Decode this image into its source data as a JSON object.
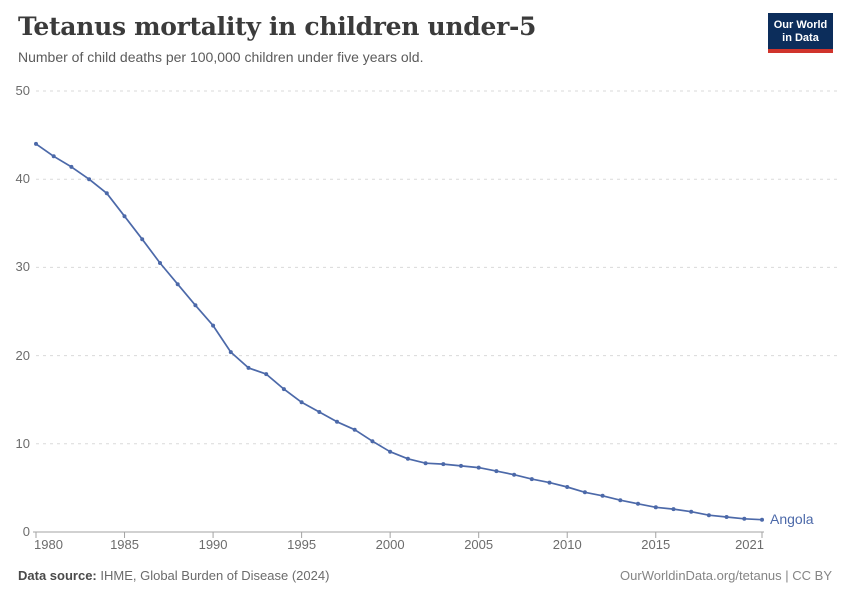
{
  "header": {
    "title": "Tetanus mortality in children under-5",
    "subtitle": "Number of child deaths per 100,000 children under five years old."
  },
  "logo": {
    "line1": "Our World",
    "line2": "in Data",
    "bg_color": "#0c2d5b",
    "accent_color": "#d0342c"
  },
  "footer": {
    "source_label": "Data source:",
    "source_text": " IHME, Global Burden of Disease (2024)",
    "credit": "OurWorldinData.org/tetanus | CC BY"
  },
  "chart_data": {
    "type": "line",
    "title": "Tetanus mortality in children under-5",
    "subtitle": "Number of child deaths per 100,000 children under five years old.",
    "x": [
      1980,
      1981,
      1982,
      1983,
      1984,
      1985,
      1986,
      1987,
      1988,
      1989,
      1990,
      1991,
      1992,
      1993,
      1994,
      1995,
      1996,
      1997,
      1998,
      1999,
      2000,
      2001,
      2002,
      2003,
      2004,
      2005,
      2006,
      2007,
      2008,
      2009,
      2010,
      2011,
      2012,
      2013,
      2014,
      2015,
      2016,
      2017,
      2018,
      2019,
      2020,
      2021
    ],
    "series": [
      {
        "name": "Angola",
        "color": "#4c69a9",
        "values": [
          44.0,
          42.6,
          41.4,
          40.0,
          38.4,
          35.8,
          33.2,
          30.5,
          28.1,
          25.7,
          23.4,
          20.4,
          18.6,
          17.9,
          16.2,
          14.7,
          13.6,
          12.5,
          11.6,
          10.3,
          9.1,
          8.3,
          7.8,
          7.7,
          7.5,
          7.3,
          6.9,
          6.5,
          6.0,
          5.6,
          5.1,
          4.5,
          4.1,
          3.6,
          3.2,
          2.8,
          2.6,
          2.3,
          1.9,
          1.7,
          1.5,
          1.4
        ]
      }
    ],
    "x_ticks": [
      1980,
      1985,
      1990,
      1995,
      2000,
      2005,
      2010,
      2015,
      2021
    ],
    "y_ticks": [
      0,
      10,
      20,
      30,
      40,
      50
    ],
    "xlim": [
      1980,
      2021
    ],
    "ylim": [
      0,
      50
    ],
    "grid": "horizontal-dashed",
    "grid_color": "#dadada",
    "axis_color": "#a3a3a3",
    "tick_label_color": "#6c6c6c",
    "legend": "end-of-line-label"
  }
}
